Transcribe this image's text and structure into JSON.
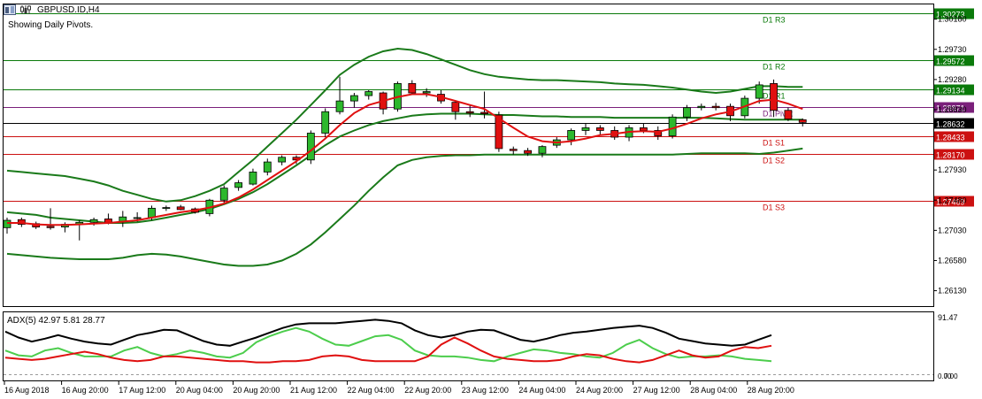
{
  "window": {
    "title": "GBPUSD.ID,H4",
    "subtitle": "Showing Daily Pivots."
  },
  "pivots": [
    {
      "label": "D1 R3",
      "value": 1.30273,
      "tag": "1.30273",
      "color": "#0a7a0a"
    },
    {
      "label": "D1 R2",
      "value": 1.29572,
      "tag": "1.29572",
      "color": "#0a7a0a"
    },
    {
      "label": "D1 R1",
      "value": 1.29134,
      "tag": "1.29134",
      "color": "#0a7a0a"
    },
    {
      "label": "D1 Pivot",
      "value": 1.28871,
      "tag": "1.28871",
      "color": "#7a1f7a"
    },
    {
      "label": "D1 S1",
      "value": 1.28433,
      "tag": "1.28433",
      "color": "#cc1111"
    },
    {
      "label": "D1 S2",
      "value": 1.2817,
      "tag": "1.28170",
      "color": "#cc1111"
    },
    {
      "label": "D1 S3",
      "value": 1.27469,
      "tag": "1.27469",
      "color": "#cc1111"
    }
  ],
  "current_price": {
    "value": 1.28632,
    "tag": "1.28632"
  },
  "price_axis": {
    "ticks": [
      "1.30180",
      "1.29730",
      "1.29280",
      "1.28830",
      "1.27930",
      "1.27480",
      "1.27030",
      "1.26580",
      "1.26130"
    ],
    "ylim": [
      1.259,
      1.304
    ]
  },
  "time_axis": [
    "16 Aug 2018",
    "16 Aug 20:00",
    "17 Aug 12:00",
    "20 Aug 04:00",
    "20 Aug 20:00",
    "21 Aug 12:00",
    "22 Aug 04:00",
    "22 Aug 20:00",
    "23 Aug 12:00",
    "24 Aug 04:00",
    "24 Aug 20:00",
    "27 Aug 12:00",
    "28 Aug 04:00",
    "28 Aug 20:00"
  ],
  "adx": {
    "label": "ADX(5) 42.97 5.81 28.77",
    "ticks": [
      "91.47",
      "0.00"
    ],
    "corner_value": "7.00",
    "ylim": [
      0,
      100
    ],
    "adx_line": [
      72,
      62,
      55,
      60,
      66,
      60,
      55,
      52,
      50,
      58,
      66,
      70,
      75,
      74,
      65,
      56,
      50,
      48,
      55,
      62,
      70,
      78,
      84,
      86,
      86,
      86,
      88,
      90,
      92,
      90,
      86,
      74,
      66,
      62,
      66,
      72,
      75,
      74,
      66,
      58,
      55,
      60,
      66,
      70,
      72,
      75,
      78,
      80,
      82,
      78,
      70,
      60,
      56,
      52,
      50,
      48,
      50,
      58,
      66
    ],
    "plus_di": [
      40,
      32,
      30,
      40,
      44,
      36,
      30,
      30,
      30,
      40,
      46,
      36,
      30,
      34,
      40,
      36,
      30,
      28,
      36,
      54,
      64,
      72,
      78,
      72,
      60,
      50,
      48,
      56,
      64,
      66,
      58,
      40,
      32,
      30,
      30,
      28,
      24,
      22,
      30,
      36,
      42,
      40,
      36,
      34,
      30,
      28,
      36,
      50,
      58,
      44,
      34,
      28,
      30,
      30,
      32,
      30,
      26,
      24,
      22
    ],
    "minus_di": [
      28,
      26,
      24,
      26,
      30,
      34,
      38,
      34,
      28,
      24,
      22,
      24,
      30,
      30,
      28,
      26,
      24,
      22,
      22,
      20,
      20,
      22,
      22,
      24,
      30,
      32,
      30,
      24,
      22,
      22,
      22,
      22,
      30,
      50,
      62,
      52,
      40,
      30,
      26,
      24,
      22,
      22,
      24,
      30,
      34,
      32,
      26,
      22,
      20,
      24,
      32,
      40,
      32,
      28,
      30,
      40,
      46,
      44,
      48
    ]
  },
  "colors": {
    "bull": "#2db82d",
    "bear": "#e01010",
    "band": "#1a7a1a",
    "ma": "#e01010",
    "adx": "#000000",
    "plus_di": "#4ccd4c",
    "minus_di": "#e01010"
  },
  "chart_data": {
    "type": "candlestick",
    "title": "GBPUSD.ID,H4",
    "candles": [
      {
        "o": 1.2707,
        "h": 1.2722,
        "l": 1.2698,
        "c": 1.2718
      },
      {
        "o": 1.2719,
        "h": 1.2722,
        "l": 1.2708,
        "c": 1.2712
      },
      {
        "o": 1.2713,
        "h": 1.2716,
        "l": 1.2705,
        "c": 1.2708
      },
      {
        "o": 1.2709,
        "h": 1.2736,
        "l": 1.2704,
        "c": 1.2707
      },
      {
        "o": 1.2708,
        "h": 1.2715,
        "l": 1.27,
        "c": 1.2712
      },
      {
        "o": 1.2712,
        "h": 1.2718,
        "l": 1.2688,
        "c": 1.2715
      },
      {
        "o": 1.2715,
        "h": 1.2722,
        "l": 1.271,
        "c": 1.2719
      },
      {
        "o": 1.272,
        "h": 1.2728,
        "l": 1.2712,
        "c": 1.2714
      },
      {
        "o": 1.2716,
        "h": 1.2732,
        "l": 1.2708,
        "c": 1.2723
      },
      {
        "o": 1.2722,
        "h": 1.273,
        "l": 1.2716,
        "c": 1.2722
      },
      {
        "o": 1.2722,
        "h": 1.274,
        "l": 1.2718,
        "c": 1.2736
      },
      {
        "o": 1.2736,
        "h": 1.274,
        "l": 1.2732,
        "c": 1.2737
      },
      {
        "o": 1.2738,
        "h": 1.2741,
        "l": 1.2733,
        "c": 1.2734
      },
      {
        "o": 1.2735,
        "h": 1.2737,
        "l": 1.2728,
        "c": 1.273
      },
      {
        "o": 1.2728,
        "h": 1.275,
        "l": 1.2724,
        "c": 1.2748
      },
      {
        "o": 1.2748,
        "h": 1.277,
        "l": 1.2742,
        "c": 1.2766
      },
      {
        "o": 1.2767,
        "h": 1.2778,
        "l": 1.2762,
        "c": 1.2774
      },
      {
        "o": 1.2772,
        "h": 1.2795,
        "l": 1.277,
        "c": 1.279
      },
      {
        "o": 1.279,
        "h": 1.281,
        "l": 1.2785,
        "c": 1.2805
      },
      {
        "o": 1.2805,
        "h": 1.2815,
        "l": 1.28,
        "c": 1.2812
      },
      {
        "o": 1.2812,
        "h": 1.2815,
        "l": 1.2802,
        "c": 1.2808
      },
      {
        "o": 1.2808,
        "h": 1.2852,
        "l": 1.2802,
        "c": 1.2848
      },
      {
        "o": 1.2848,
        "h": 1.2885,
        "l": 1.2842,
        "c": 1.288
      },
      {
        "o": 1.288,
        "h": 1.2932,
        "l": 1.2876,
        "c": 1.2896
      },
      {
        "o": 1.2896,
        "h": 1.2908,
        "l": 1.2886,
        "c": 1.2904
      },
      {
        "o": 1.2904,
        "h": 1.2912,
        "l": 1.2898,
        "c": 1.291
      },
      {
        "o": 1.2908,
        "h": 1.291,
        "l": 1.2876,
        "c": 1.2884
      },
      {
        "o": 1.2884,
        "h": 1.2925,
        "l": 1.288,
        "c": 1.2922
      },
      {
        "o": 1.2922,
        "h": 1.2927,
        "l": 1.2906,
        "c": 1.2908
      },
      {
        "o": 1.2908,
        "h": 1.2915,
        "l": 1.2902,
        "c": 1.291
      },
      {
        "o": 1.2906,
        "h": 1.2912,
        "l": 1.2892,
        "c": 1.2896
      },
      {
        "o": 1.2894,
        "h": 1.2897,
        "l": 1.2868,
        "c": 1.288
      },
      {
        "o": 1.288,
        "h": 1.289,
        "l": 1.2872,
        "c": 1.2878
      },
      {
        "o": 1.2879,
        "h": 1.291,
        "l": 1.287,
        "c": 1.2877
      },
      {
        "o": 1.2875,
        "h": 1.288,
        "l": 1.282,
        "c": 1.2825
      },
      {
        "o": 1.2824,
        "h": 1.2828,
        "l": 1.2816,
        "c": 1.2822
      },
      {
        "o": 1.2822,
        "h": 1.2826,
        "l": 1.2814,
        "c": 1.2818
      },
      {
        "o": 1.2818,
        "h": 1.283,
        "l": 1.2812,
        "c": 1.2828
      },
      {
        "o": 1.283,
        "h": 1.2842,
        "l": 1.2826,
        "c": 1.2838
      },
      {
        "o": 1.2838,
        "h": 1.2855,
        "l": 1.283,
        "c": 1.2852
      },
      {
        "o": 1.2852,
        "h": 1.2862,
        "l": 1.2845,
        "c": 1.2856
      },
      {
        "o": 1.2856,
        "h": 1.286,
        "l": 1.2846,
        "c": 1.2852
      },
      {
        "o": 1.2852,
        "h": 1.2858,
        "l": 1.2838,
        "c": 1.2842
      },
      {
        "o": 1.2842,
        "h": 1.286,
        "l": 1.2836,
        "c": 1.2856
      },
      {
        "o": 1.2856,
        "h": 1.2862,
        "l": 1.2848,
        "c": 1.2852
      },
      {
        "o": 1.2852,
        "h": 1.2858,
        "l": 1.2838,
        "c": 1.2844
      },
      {
        "o": 1.2844,
        "h": 1.2876,
        "l": 1.284,
        "c": 1.2872
      },
      {
        "o": 1.2872,
        "h": 1.289,
        "l": 1.2866,
        "c": 1.2886
      },
      {
        "o": 1.2886,
        "h": 1.2892,
        "l": 1.2882,
        "c": 1.2888
      },
      {
        "o": 1.2888,
        "h": 1.2893,
        "l": 1.2882,
        "c": 1.2886
      },
      {
        "o": 1.2888,
        "h": 1.2892,
        "l": 1.2866,
        "c": 1.2874
      },
      {
        "o": 1.2874,
        "h": 1.2904,
        "l": 1.287,
        "c": 1.29
      },
      {
        "o": 1.29,
        "h": 1.2925,
        "l": 1.2892,
        "c": 1.292
      },
      {
        "o": 1.2922,
        "h": 1.2928,
        "l": 1.2872,
        "c": 1.2882
      },
      {
        "o": 1.2882,
        "h": 1.2886,
        "l": 1.2866,
        "c": 1.2869
      },
      {
        "o": 1.2868,
        "h": 1.287,
        "l": 1.2858,
        "c": 1.2864
      }
    ],
    "bands_upper": [
      1.2792,
      1.279,
      1.2788,
      1.2786,
      1.2784,
      1.278,
      1.2776,
      1.277,
      1.2762,
      1.2756,
      1.275,
      1.2746,
      1.2748,
      1.2754,
      1.2762,
      1.2772,
      1.279,
      1.2808,
      1.2828,
      1.2848,
      1.2868,
      1.289,
      1.2912,
      1.2935,
      1.295,
      1.2962,
      1.297,
      1.2974,
      1.2972,
      1.2966,
      1.2958,
      1.295,
      1.2942,
      1.2936,
      1.2932,
      1.293,
      1.2928,
      1.2927,
      1.2927,
      1.2926,
      1.2925,
      1.2924,
      1.2922,
      1.2921,
      1.292,
      1.2918,
      1.2916,
      1.2913,
      1.291,
      1.2908,
      1.291,
      1.2914,
      1.2918,
      1.2918,
      1.2917,
      1.2917
    ],
    "bands_middle": [
      1.273,
      1.2728,
      1.2726,
      1.2722,
      1.272,
      1.2718,
      1.2716,
      1.2714,
      1.2714,
      1.2715,
      1.2718,
      1.2722,
      1.2726,
      1.273,
      1.2735,
      1.2742,
      1.275,
      1.276,
      1.2772,
      1.2786,
      1.28,
      1.2815,
      1.283,
      1.2843,
      1.2852,
      1.286,
      1.2866,
      1.287,
      1.2874,
      1.2876,
      1.2877,
      1.2877,
      1.2877,
      1.2876,
      1.2875,
      1.2875,
      1.2874,
      1.2873,
      1.2873,
      1.2872,
      1.2872,
      1.2872,
      1.2871,
      1.2871,
      1.2871,
      1.2871,
      1.2871,
      1.2871,
      1.2871,
      1.287,
      1.2869,
      1.2868,
      1.2868,
      1.2868,
      1.2868,
      1.2868
    ],
    "bands_lower": [
      1.2668,
      1.2666,
      1.2664,
      1.2662,
      1.2661,
      1.266,
      1.266,
      1.266,
      1.2662,
      1.2666,
      1.2668,
      1.2667,
      1.2664,
      1.266,
      1.2656,
      1.2652,
      1.265,
      1.265,
      1.2652,
      1.2658,
      1.2668,
      1.2682,
      1.27,
      1.272,
      1.274,
      1.2762,
      1.2782,
      1.28,
      1.2808,
      1.2812,
      1.2814,
      1.2815,
      1.2815,
      1.2816,
      1.2816,
      1.2816,
      1.2816,
      1.2816,
      1.2816,
      1.2816,
      1.2816,
      1.2816,
      1.2816,
      1.2816,
      1.2816,
      1.2816,
      1.2816,
      1.2817,
      1.2818,
      1.2818,
      1.2818,
      1.2818,
      1.2817,
      1.2819,
      1.2822,
      1.2825
    ],
    "ma": [
      1.2714,
      1.2714,
      1.2712,
      1.2711,
      1.2711,
      1.2712,
      1.2713,
      1.2714,
      1.2716,
      1.2718,
      1.2722,
      1.2726,
      1.273,
      1.2733,
      1.2737,
      1.2743,
      1.2752,
      1.2764,
      1.2778,
      1.2792,
      1.2806,
      1.2822,
      1.284,
      1.286,
      1.2878,
      1.289,
      1.2896,
      1.2902,
      1.2906,
      1.2906,
      1.2902,
      1.2896,
      1.289,
      1.2884,
      1.287,
      1.2856,
      1.2843,
      1.2836,
      1.2834,
      1.2836,
      1.284,
      1.2845,
      1.2847,
      1.285,
      1.2851,
      1.285,
      1.2855,
      1.2862,
      1.287,
      1.2876,
      1.288,
      1.2888,
      1.2896,
      1.2898,
      1.2892,
      1.2884
    ]
  }
}
